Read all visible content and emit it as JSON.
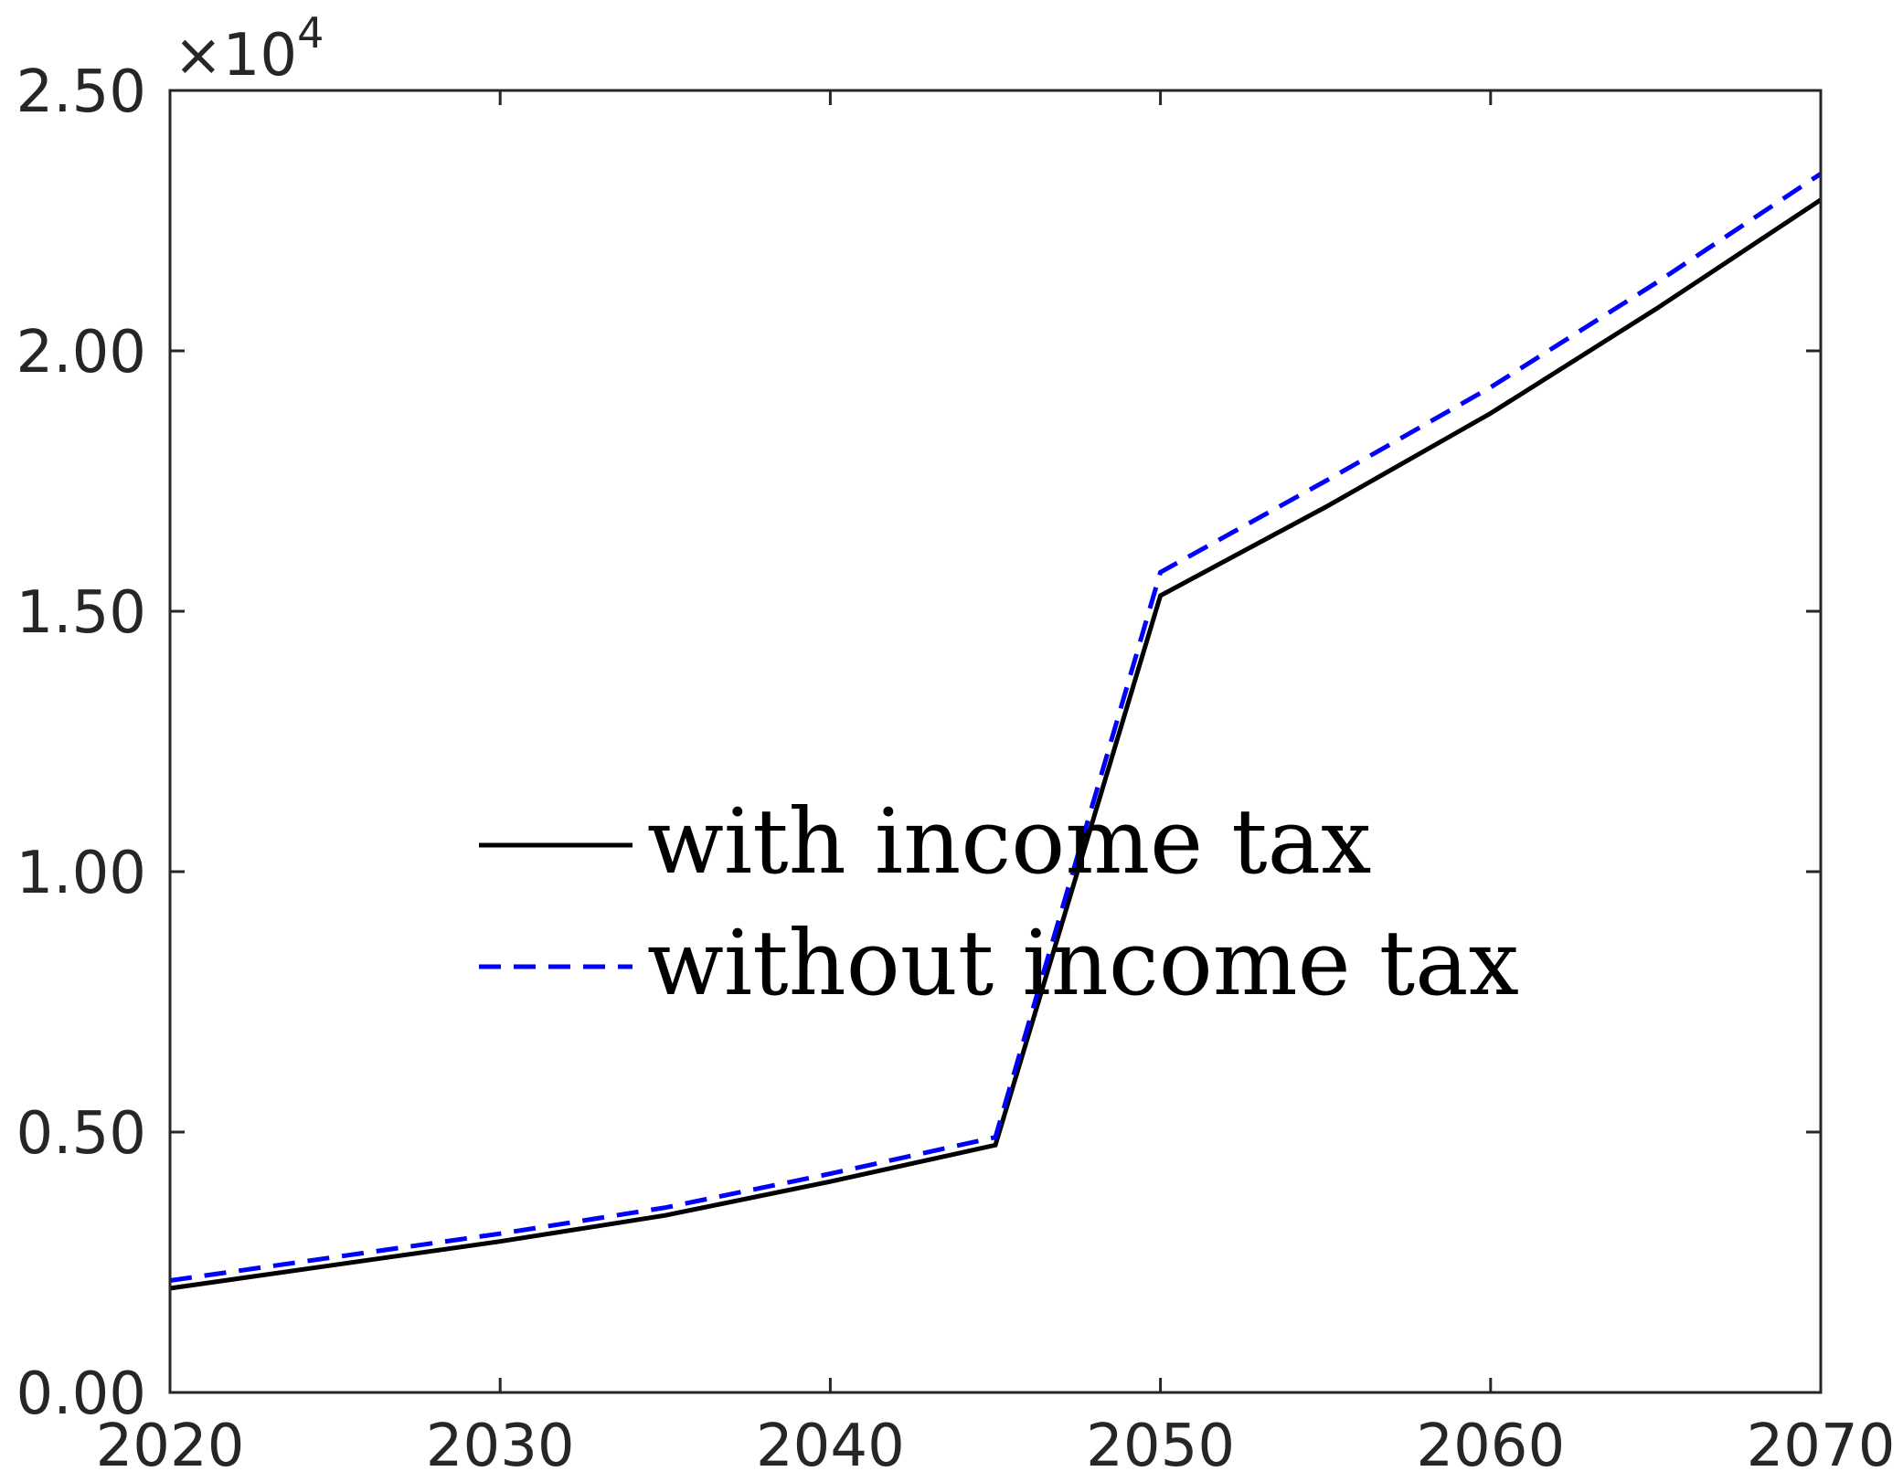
{
  "chart_data": {
    "type": "line",
    "title": "",
    "xlabel": "",
    "ylabel": "",
    "xlim": [
      2020,
      2070
    ],
    "ylim": [
      0,
      25000
    ],
    "x_ticks": [
      2020,
      2030,
      2040,
      2050,
      2060,
      2070
    ],
    "y_ticks": [
      0,
      5000,
      10000,
      15000,
      20000,
      25000
    ],
    "y_tick_labels": [
      "0.00",
      "0.50",
      "1.00",
      "1.50",
      "2.00",
      "2.50"
    ],
    "y_multiplier": {
      "base": "×10",
      "exponent": "4"
    },
    "grid": false,
    "legend_position": "center-left",
    "series": [
      {
        "name": "with income tax",
        "color": "#000000",
        "style": "solid",
        "x": [
          2020,
          2025,
          2030,
          2035,
          2040,
          2045,
          2050,
          2055,
          2060,
          2065,
          2070
        ],
        "y": [
          2000,
          2450,
          2900,
          3400,
          4050,
          4750,
          15300,
          17000,
          18800,
          20800,
          22900
        ]
      },
      {
        "name": "without income tax",
        "color": "#0000ff",
        "style": "dashed",
        "x": [
          2020,
          2025,
          2030,
          2035,
          2040,
          2045,
          2050,
          2055,
          2060,
          2065,
          2070
        ],
        "y": [
          2150,
          2600,
          3050,
          3550,
          4200,
          4900,
          15750,
          17500,
          19300,
          21300,
          23400
        ]
      }
    ]
  }
}
